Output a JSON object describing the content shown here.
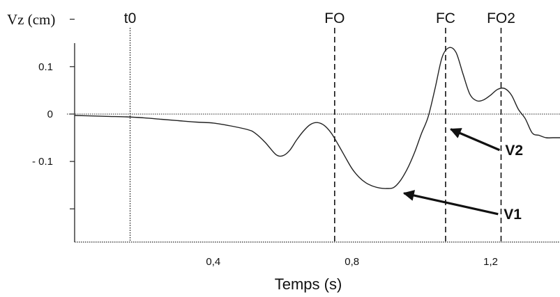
{
  "chart_data": {
    "type": "line",
    "title": "",
    "ylabel": "Vz (cm)",
    "xlabel": "Temps (s)",
    "xlim": [
      0,
      1.4
    ],
    "ylim": [
      -0.27,
      0.22
    ],
    "x_ticks": [
      {
        "value": 0.4,
        "label": "0,4"
      },
      {
        "value": 0.8,
        "label": "0,8"
      },
      {
        "value": 1.2,
        "label": "1,2"
      }
    ],
    "y_ticks": [
      {
        "value": 0.1,
        "label": "0.1"
      },
      {
        "value": 0,
        "label": "0"
      },
      {
        "value": -0.1,
        "label": "- 0.1"
      }
    ],
    "y_minor_ticks": [
      0.2,
      0.1,
      0,
      -0.1,
      -0.2
    ],
    "zero_line": true,
    "series": [
      {
        "name": "",
        "x": [
          0.0,
          0.05,
          0.1,
          0.15,
          0.2,
          0.25,
          0.3,
          0.35,
          0.4,
          0.45,
          0.5,
          0.52,
          0.55,
          0.58,
          0.6,
          0.62,
          0.64,
          0.66,
          0.68,
          0.7,
          0.72,
          0.74,
          0.76,
          0.78,
          0.8,
          0.82,
          0.84,
          0.86,
          0.88,
          0.9,
          0.92,
          0.94,
          0.96,
          0.98,
          1.0,
          1.02,
          1.04,
          1.06,
          1.08,
          1.1,
          1.12,
          1.14,
          1.16,
          1.18,
          1.2,
          1.22,
          1.24,
          1.26,
          1.28,
          1.3,
          1.32,
          1.34,
          1.36,
          1.38,
          1.4
        ],
        "y": [
          -0.003,
          -0.004,
          -0.005,
          -0.006,
          -0.008,
          -0.011,
          -0.014,
          -0.017,
          -0.019,
          -0.025,
          -0.033,
          -0.04,
          -0.06,
          -0.085,
          -0.088,
          -0.077,
          -0.055,
          -0.036,
          -0.022,
          -0.018,
          -0.024,
          -0.04,
          -0.064,
          -0.09,
          -0.115,
          -0.133,
          -0.145,
          -0.152,
          -0.156,
          -0.157,
          -0.155,
          -0.14,
          -0.115,
          -0.082,
          -0.042,
          -0.005,
          0.055,
          0.12,
          0.14,
          0.13,
          0.085,
          0.042,
          0.028,
          0.03,
          0.04,
          0.052,
          0.054,
          0.04,
          0.01,
          -0.01,
          -0.04,
          -0.045,
          -0.05,
          -0.05,
          -0.05
        ]
      }
    ],
    "events": [
      {
        "label": "t0",
        "x": 0.16,
        "style": "dotted"
      },
      {
        "label": "FO",
        "x": 0.75,
        "style": "dashed"
      },
      {
        "label": "FC",
        "x": 1.07,
        "style": "dashed"
      },
      {
        "label": "FO2",
        "x": 1.23,
        "style": "dashed"
      }
    ],
    "annotations": [
      {
        "label": "V1",
        "target_x": 0.95,
        "target_y": -0.167
      },
      {
        "label": "V2",
        "target_x": 1.085,
        "target_y": -0.032
      }
    ],
    "grid": false,
    "legend": "none"
  }
}
